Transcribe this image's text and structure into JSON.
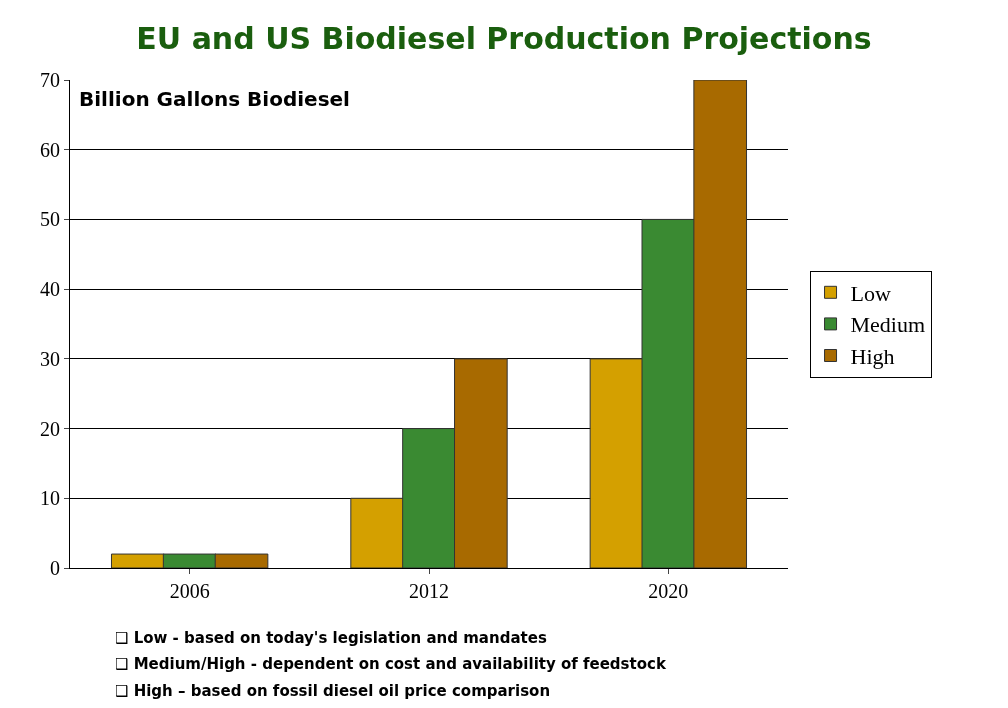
{
  "chart_data": {
    "type": "bar",
    "title": "EU and US Biodiesel Production Projections",
    "ylabel": "Billion Gallons Biodiesel",
    "categories": [
      "2006",
      "2012",
      "2020"
    ],
    "series": [
      {
        "name": "Low",
        "color": "#d4a000",
        "values": [
          2,
          10,
          30
        ]
      },
      {
        "name": "Medium",
        "color": "#3a8a32",
        "values": [
          2,
          20,
          50
        ]
      },
      {
        "name": "High",
        "color": "#a86a00",
        "values": [
          2,
          30,
          70
        ]
      }
    ],
    "ylim": [
      0,
      70
    ],
    "yticks": [
      0,
      10,
      20,
      30,
      40,
      50,
      60,
      70
    ],
    "grid": "y",
    "legend": "right",
    "annotations": [
      "❑ Low - based on today's legislation and mandates",
      "❑ Medium/High - dependent on cost and availability of feedstock",
      "❑ High – based on fossil diesel oil price comparison"
    ]
  }
}
